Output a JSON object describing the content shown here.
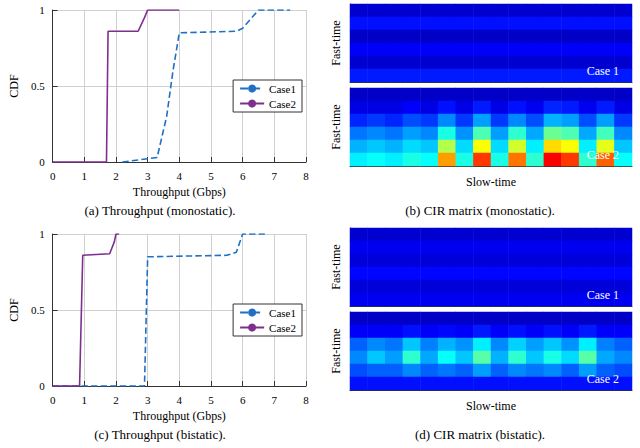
{
  "chart_data": [
    {
      "type": "line",
      "title": "(a) Throughput (monostatic).",
      "x_label": "Throughput (Gbps)",
      "y_label": "CDF",
      "xlim": [
        0,
        8
      ],
      "xticks": [
        0,
        1,
        2,
        3,
        4,
        5,
        6,
        7,
        8
      ],
      "ylim": [
        0,
        1
      ],
      "yticks": [
        0,
        0.5,
        1
      ],
      "grid": true,
      "legend": "right",
      "series": [
        {
          "name": "Case1",
          "color": "#1f6fc5",
          "line_style": "dashed",
          "x": [
            2.2,
            3.3,
            3.6,
            3.8,
            4.0,
            5.8,
            6.0,
            6.5,
            7.5
          ],
          "values": [
            0,
            0.03,
            0.3,
            0.6,
            0.85,
            0.86,
            0.88,
            1,
            1
          ]
        },
        {
          "name": "Case2",
          "color": "#7e2f8e",
          "line_style": "solid",
          "x": [
            0,
            1.7,
            1.75,
            2.7,
            2.9,
            3.0,
            4.0
          ],
          "values": [
            0,
            0,
            0.86,
            0.86,
            0.95,
            1,
            1
          ]
        }
      ]
    },
    {
      "type": "heatmap",
      "title": "(b) CIR matrix (monostatic).",
      "x_label": "Slow-time",
      "y_label": "Fast-time",
      "tick_labels": false,
      "zlim": [
        0,
        1
      ],
      "matrices": [
        {
          "name": "Case 1",
          "cells": [
            [
              0.08,
              0.08,
              0.08,
              0.08,
              0.08,
              0.08,
              0.08,
              0.08,
              0.08,
              0.08,
              0.08,
              0.08,
              0.08,
              0.08,
              0.08,
              0.08
            ],
            [
              0.14,
              0.14,
              0.14,
              0.14,
              0.14,
              0.14,
              0.14,
              0.14,
              0.14,
              0.14,
              0.14,
              0.14,
              0.14,
              0.14,
              0.14,
              0.14
            ],
            [
              0.07,
              0.07,
              0.07,
              0.07,
              0.07,
              0.07,
              0.07,
              0.07,
              0.07,
              0.07,
              0.07,
              0.07,
              0.07,
              0.07,
              0.07,
              0.07
            ],
            [
              0.12,
              0.12,
              0.12,
              0.12,
              0.12,
              0.12,
              0.12,
              0.12,
              0.12,
              0.12,
              0.12,
              0.12,
              0.12,
              0.12,
              0.12,
              0.12
            ],
            [
              0.08,
              0.08,
              0.08,
              0.08,
              0.08,
              0.08,
              0.08,
              0.08,
              0.08,
              0.08,
              0.08,
              0.08,
              0.08,
              0.08,
              0.08,
              0.08
            ],
            [
              0.15,
              0.15,
              0.15,
              0.15,
              0.15,
              0.15,
              0.15,
              0.15,
              0.15,
              0.15,
              0.15,
              0.15,
              0.15,
              0.15,
              0.15,
              0.15
            ]
          ]
        },
        {
          "name": "Case 2",
          "cells": [
            [
              0.07,
              0.07,
              0.07,
              0.07,
              0.07,
              0.07,
              0.07,
              0.07,
              0.07,
              0.07,
              0.07,
              0.07,
              0.07,
              0.07,
              0.07,
              0.07
            ],
            [
              0.1,
              0.1,
              0.1,
              0.12,
              0.1,
              0.14,
              0.1,
              0.15,
              0.1,
              0.14,
              0.11,
              0.16,
              0.15,
              0.11,
              0.15,
              0.1
            ],
            [
              0.16,
              0.18,
              0.16,
              0.2,
              0.18,
              0.26,
              0.18,
              0.28,
              0.18,
              0.26,
              0.2,
              0.3,
              0.28,
              0.2,
              0.28,
              0.18
            ],
            [
              0.24,
              0.26,
              0.24,
              0.28,
              0.26,
              0.4,
              0.27,
              0.45,
              0.28,
              0.42,
              0.29,
              0.48,
              0.45,
              0.29,
              0.44,
              0.26
            ],
            [
              0.3,
              0.32,
              0.3,
              0.34,
              0.32,
              0.55,
              0.34,
              0.62,
              0.34,
              0.58,
              0.36,
              0.66,
              0.62,
              0.36,
              0.6,
              0.32
            ],
            [
              0.36,
              0.38,
              0.36,
              0.4,
              0.38,
              0.72,
              0.4,
              0.82,
              0.4,
              0.76,
              0.42,
              0.88,
              0.82,
              0.42,
              0.78,
              0.38
            ]
          ]
        }
      ]
    },
    {
      "type": "line",
      "title": "(c) Throughput (bistatic).",
      "x_label": "Throughput (Gbps)",
      "y_label": "CDF",
      "xlim": [
        0,
        8
      ],
      "xticks": [
        0,
        1,
        2,
        3,
        4,
        5,
        6,
        7,
        8
      ],
      "ylim": [
        0,
        1
      ],
      "yticks": [
        0,
        0.5,
        1
      ],
      "grid": true,
      "legend": "right",
      "series": [
        {
          "name": "Case1",
          "color": "#1f6fc5",
          "line_style": "dashed",
          "x": [
            0,
            2.9,
            3.0,
            5.5,
            5.8,
            6.0,
            6.7
          ],
          "values": [
            0,
            0,
            0.85,
            0.86,
            0.88,
            1,
            1
          ]
        },
        {
          "name": "Case2",
          "color": "#7e2f8e",
          "line_style": "solid",
          "x": [
            0,
            0.85,
            0.95,
            1.8,
            1.95,
            2.0,
            2.1
          ],
          "values": [
            0,
            0,
            0.86,
            0.87,
            0.95,
            1,
            1
          ]
        }
      ]
    },
    {
      "type": "heatmap",
      "title": "(d) CIR matrix (bistatic).",
      "x_label": "Slow-time",
      "y_label": "Fast-time",
      "tick_labels": false,
      "zlim": [
        0,
        1
      ],
      "matrices": [
        {
          "name": "Case 1",
          "cells": [
            [
              0.08,
              0.08,
              0.08,
              0.08,
              0.08,
              0.08,
              0.08,
              0.08,
              0.08,
              0.08,
              0.08,
              0.08,
              0.08,
              0.08,
              0.08,
              0.08
            ],
            [
              0.11,
              0.11,
              0.11,
              0.11,
              0.11,
              0.11,
              0.11,
              0.11,
              0.11,
              0.11,
              0.11,
              0.11,
              0.11,
              0.11,
              0.11,
              0.11
            ],
            [
              0.09,
              0.09,
              0.09,
              0.09,
              0.09,
              0.09,
              0.09,
              0.09,
              0.09,
              0.09,
              0.09,
              0.09,
              0.09,
              0.09,
              0.09,
              0.09
            ],
            [
              0.13,
              0.13,
              0.13,
              0.13,
              0.13,
              0.13,
              0.13,
              0.13,
              0.13,
              0.13,
              0.13,
              0.13,
              0.13,
              0.13,
              0.13,
              0.13
            ],
            [
              0.09,
              0.09,
              0.09,
              0.09,
              0.09,
              0.09,
              0.09,
              0.09,
              0.09,
              0.09,
              0.09,
              0.09,
              0.09,
              0.09,
              0.09,
              0.09
            ],
            [
              0.11,
              0.11,
              0.11,
              0.11,
              0.11,
              0.11,
              0.11,
              0.11,
              0.11,
              0.11,
              0.11,
              0.11,
              0.11,
              0.11,
              0.11,
              0.11
            ]
          ]
        },
        {
          "name": "Case 2",
          "cells": [
            [
              0.07,
              0.07,
              0.07,
              0.07,
              0.07,
              0.07,
              0.07,
              0.07,
              0.07,
              0.07,
              0.07,
              0.07,
              0.07,
              0.07,
              0.07,
              0.07
            ],
            [
              0.12,
              0.12,
              0.12,
              0.14,
              0.12,
              0.13,
              0.12,
              0.15,
              0.12,
              0.14,
              0.12,
              0.14,
              0.12,
              0.15,
              0.12,
              0.12
            ],
            [
              0.22,
              0.26,
              0.24,
              0.32,
              0.25,
              0.3,
              0.27,
              0.36,
              0.26,
              0.33,
              0.28,
              0.32,
              0.27,
              0.36,
              0.25,
              0.22
            ],
            [
              0.26,
              0.32,
              0.28,
              0.42,
              0.29,
              0.38,
              0.32,
              0.46,
              0.3,
              0.42,
              0.32,
              0.4,
              0.34,
              0.46,
              0.29,
              0.26
            ],
            [
              0.2,
              0.22,
              0.22,
              0.26,
              0.22,
              0.24,
              0.22,
              0.28,
              0.22,
              0.26,
              0.24,
              0.26,
              0.22,
              0.28,
              0.22,
              0.2
            ],
            [
              0.14,
              0.14,
              0.14,
              0.14,
              0.14,
              0.14,
              0.14,
              0.14,
              0.14,
              0.14,
              0.14,
              0.14,
              0.14,
              0.14,
              0.14,
              0.14
            ]
          ]
        }
      ]
    }
  ]
}
